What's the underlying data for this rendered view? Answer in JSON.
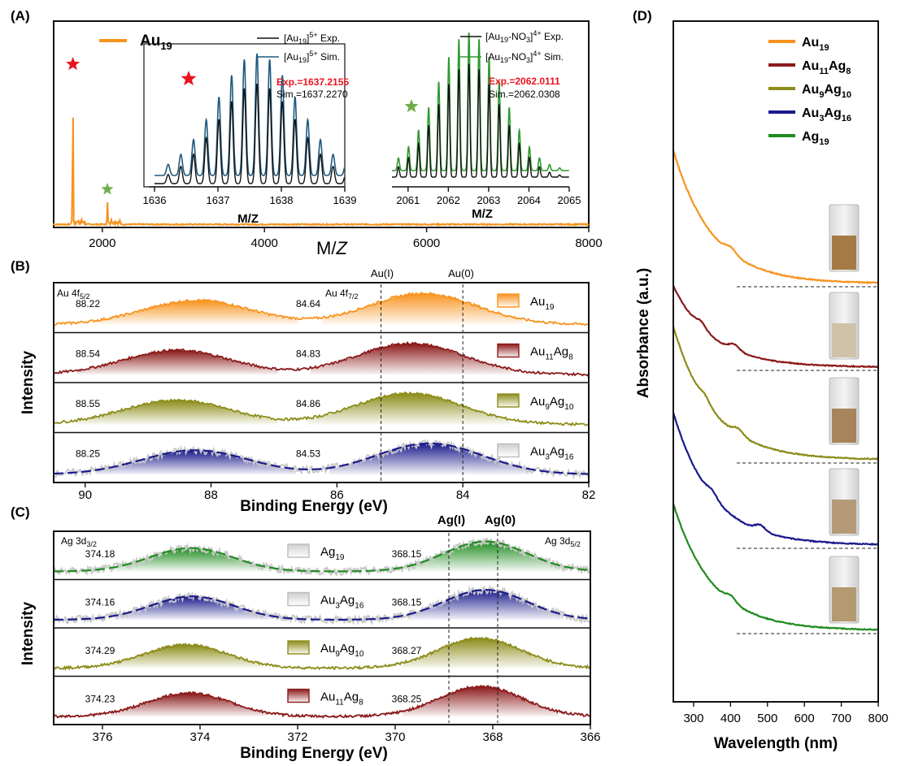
{
  "panel_labels": [
    "(A)",
    "(B)",
    "(C)",
    "(D)"
  ],
  "colors": {
    "Au19": "#f7931e",
    "Au11Ag8": "#8b1a1a",
    "Au9Ag10": "#8c8c1a",
    "Au3Ag16": "#1a1a8c",
    "Ag19": "#1f8c1f",
    "exp": "#111111",
    "sim_au": "#1f5a7f",
    "sim_no3": "#2e9a2e",
    "star_red": "#e8141e",
    "star_green": "#6fae4a"
  },
  "legend_A": "Au19",
  "inset1": {
    "legend": [
      {
        "name": "[Au19]5+ Exp.",
        "base": "[Au",
        "sub": "19",
        "mid": "]",
        "sup": "5+",
        "tail": " Exp."
      },
      {
        "name": "[Au19]5+ Sim.",
        "base": "[Au",
        "sub": "19",
        "mid": "]",
        "sup": "5+",
        "tail": " Sim."
      }
    ],
    "exp_text": "Exp.=1637.2155",
    "sim_text": "Sim.=1637.2270",
    "xticks": [
      "1636",
      "1637",
      "1638",
      "1639"
    ],
    "xlabel": "M/Z"
  },
  "inset2": {
    "legend": [
      {
        "name": "[Au19-NO3]4+ Exp.",
        "base": "[Au",
        "sub": "19",
        "mid": "-NO",
        "sub2": "3",
        "mid2": "]",
        "sup": "4+",
        "tail": " Exp."
      },
      {
        "name": "[Au19-NO3]4+ Sim.",
        "base": "[Au",
        "sub": "19",
        "mid": "-NO",
        "sub2": "3",
        "mid2": "]",
        "sup": "4+",
        "tail": " Sim."
      }
    ],
    "exp_text": "Exp.=2062.0111",
    "sim_text": "Sim.=2062.0308",
    "xticks": [
      "2061",
      "2062",
      "2063",
      "2064",
      "2065"
    ],
    "xlabel": "M/Z"
  },
  "panel_B": {
    "ylabel": "Intensity",
    "xlabel": "Binding Energy (eV)",
    "xticks": [
      "90",
      "88",
      "86",
      "84",
      "82"
    ],
    "ref_lines": [
      "Au(I)",
      "Au(0)"
    ],
    "orbital_left": "Au 4f5/2",
    "orbital_right": "Au 4f7/2"
  },
  "panel_C": {
    "ylabel": "Intensity",
    "xlabel": "Binding Energy (eV)",
    "xticks": [
      "376",
      "374",
      "372",
      "370",
      "368",
      "366"
    ],
    "ref_lines": [
      "Ag(I)",
      "Ag(0)"
    ],
    "orbital_left": "Ag 3d3/2",
    "orbital_right": "Ag 3d5/2"
  },
  "panel_D": {
    "ylabel": "Absorbance (a.u.)",
    "xlabel": "Wavelength (nm)",
    "xticks": [
      "300",
      "400",
      "500",
      "600",
      "700",
      "800"
    ]
  },
  "chart_data": [
    {
      "type": "line",
      "panel": "A",
      "xlabel": "M/Z",
      "xlim": [
        1400,
        8000
      ],
      "xticks": [
        2000,
        4000,
        6000,
        8000
      ],
      "series": [
        {
          "name": "Au19",
          "peaks": [
            {
              "x": 1637,
              "height": 1.0
            },
            {
              "x": 2062,
              "height": 0.15
            }
          ]
        }
      ],
      "insets": [
        {
          "xlim": [
            1636,
            1639
          ],
          "peak_spacing": 0.2,
          "series": [
            {
              "name": "[Au19]5+ Exp.",
              "center": 1637.2155
            },
            {
              "name": "[Au19]5+ Sim.",
              "center": 1637.227
            }
          ]
        },
        {
          "xlim": [
            2060.6,
            2065
          ],
          "peak_spacing": 0.25,
          "series": [
            {
              "name": "[Au19-NO3]4+ Exp.",
              "center": 2062.0111
            },
            {
              "name": "[Au19-NO3]4+ Sim.",
              "center": 2062.0308
            }
          ]
        }
      ]
    },
    {
      "type": "area",
      "panel": "B",
      "xlabel": "Binding Energy (eV)",
      "ylabel": "Intensity",
      "xlim": [
        90.5,
        82
      ],
      "reference_lines": [
        {
          "label": "Au(I)",
          "x": 85.3
        },
        {
          "label": "Au(0)",
          "x": 84.0
        }
      ],
      "series": [
        {
          "name": "Au19",
          "peaks": [
            88.22,
            84.64
          ],
          "peak_labels": [
            "88.22",
            "84.64"
          ]
        },
        {
          "name": "Au11Ag8",
          "peaks": [
            88.54,
            84.83
          ],
          "peak_labels": [
            "88.54",
            "84.83"
          ]
        },
        {
          "name": "Au9Ag10",
          "peaks": [
            88.55,
            84.86
          ],
          "peak_labels": [
            "88.55",
            "84.86"
          ]
        },
        {
          "name": "Au3Ag16",
          "peaks": [
            88.25,
            84.53
          ],
          "peak_labels": [
            "88.25",
            "84.53"
          ]
        }
      ]
    },
    {
      "type": "area",
      "panel": "C",
      "xlabel": "Binding Energy (eV)",
      "ylabel": "Intensity",
      "xlim": [
        377,
        366
      ],
      "reference_lines": [
        {
          "label": "Ag(I)",
          "x": 368.9
        },
        {
          "label": "Ag(0)",
          "x": 367.9
        }
      ],
      "series": [
        {
          "name": "Ag19",
          "peaks": [
            374.18,
            368.15
          ],
          "peak_labels": [
            "374.18",
            "368.15"
          ]
        },
        {
          "name": "Au3Ag16",
          "peaks": [
            374.16,
            368.15
          ],
          "peak_labels": [
            "374.16",
            "368.15"
          ]
        },
        {
          "name": "Au9Ag10",
          "peaks": [
            374.29,
            368.27
          ],
          "peak_labels": [
            "374.29",
            "368.27"
          ]
        },
        {
          "name": "Au11Ag8",
          "peaks": [
            374.23,
            368.25
          ],
          "peak_labels": [
            "374.23",
            "368.25"
          ]
        }
      ]
    },
    {
      "type": "line",
      "panel": "D",
      "xlabel": "Wavelength (nm)",
      "ylabel": "Absorbance (a.u.)",
      "xlim": [
        245,
        800
      ],
      "series": [
        {
          "name": "Au19",
          "shoulders": [
            400
          ]
        },
        {
          "name": "Au11Ag8",
          "shoulders": [
            320,
            410
          ]
        },
        {
          "name": "Au9Ag10",
          "shoulders": [
            330,
            420
          ]
        },
        {
          "name": "Au3Ag16",
          "shoulders": [
            350,
            480
          ]
        },
        {
          "name": "Ag19",
          "shoulders": [
            400
          ]
        }
      ]
    }
  ]
}
